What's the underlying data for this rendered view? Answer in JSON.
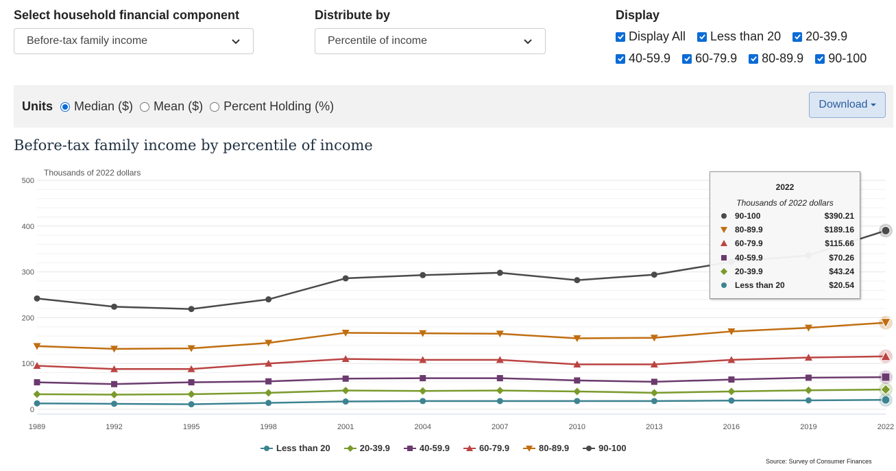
{
  "controls": {
    "component_label": "Select household financial component",
    "component_value": "Before-tax family income",
    "distribute_label": "Distribute by",
    "distribute_value": "Percentile of income",
    "display_label": "Display",
    "display_options": [
      "Display All",
      "Less than 20",
      "20-39.9",
      "40-59.9",
      "60-79.9",
      "80-89.9",
      "90-100"
    ]
  },
  "units": {
    "label": "Units",
    "options": [
      "Median ($)",
      "Mean ($)",
      "Percent Holding (%)"
    ],
    "selected": "Median ($)"
  },
  "download_label": "Download",
  "chart_title": "Before-tax family income by percentile of income",
  "source": "Source: Survey of Consumer Finances",
  "tooltip": {
    "year": "2022",
    "unit": "Thousands of 2022 dollars",
    "rows": [
      {
        "name": "90-100",
        "value": "$390.21"
      },
      {
        "name": "80-89.9",
        "value": "$189.16"
      },
      {
        "name": "60-79.9",
        "value": "$115.66"
      },
      {
        "name": "40-59.9",
        "value": "$70.26"
      },
      {
        "name": "20-39.9",
        "value": "$43.24"
      },
      {
        "name": "Less than 20",
        "value": "$20.54"
      }
    ]
  },
  "chart_data": {
    "type": "line",
    "ylabel": "Thousands of 2022 dollars",
    "ylim": [
      0,
      500
    ],
    "yticks": [
      0,
      100,
      200,
      300,
      400,
      500
    ],
    "grid": true,
    "legend_position": "bottom",
    "x": [
      1989,
      1992,
      1995,
      1998,
      2001,
      2004,
      2007,
      2010,
      2013,
      2016,
      2019,
      2022
    ],
    "series": [
      {
        "name": "Less than 20",
        "color": "#3d8391",
        "marker": "circle",
        "values": [
          13,
          12,
          11,
          14,
          17,
          18,
          18,
          18,
          18,
          19,
          19.5,
          20.54
        ]
      },
      {
        "name": "20-39.9",
        "color": "#7a9a2c",
        "marker": "diamond",
        "values": [
          33,
          32,
          33,
          36,
          41,
          40,
          41,
          39,
          36,
          39,
          41.5,
          43.24
        ]
      },
      {
        "name": "40-59.9",
        "color": "#6b3a6e",
        "marker": "square",
        "values": [
          59,
          55,
          59,
          61,
          67,
          68,
          68,
          63,
          60,
          65,
          69,
          70.26
        ]
      },
      {
        "name": "60-79.9",
        "color": "#bb4442",
        "marker": "triangle",
        "values": [
          95,
          88,
          88,
          100,
          110,
          108,
          108,
          98,
          98,
          108,
          113,
          115.66
        ]
      },
      {
        "name": "80-89.9",
        "color": "#c06e10",
        "marker": "triangle-down",
        "values": [
          138,
          132,
          133,
          145,
          167,
          166,
          165,
          155,
          156,
          170,
          178,
          189.16
        ]
      },
      {
        "name": "90-100",
        "color": "#4a4a4a",
        "marker": "circle",
        "values": [
          242,
          224,
          219,
          240,
          286,
          293,
          298,
          282,
          294,
          322,
          336,
          390.21
        ]
      }
    ]
  }
}
